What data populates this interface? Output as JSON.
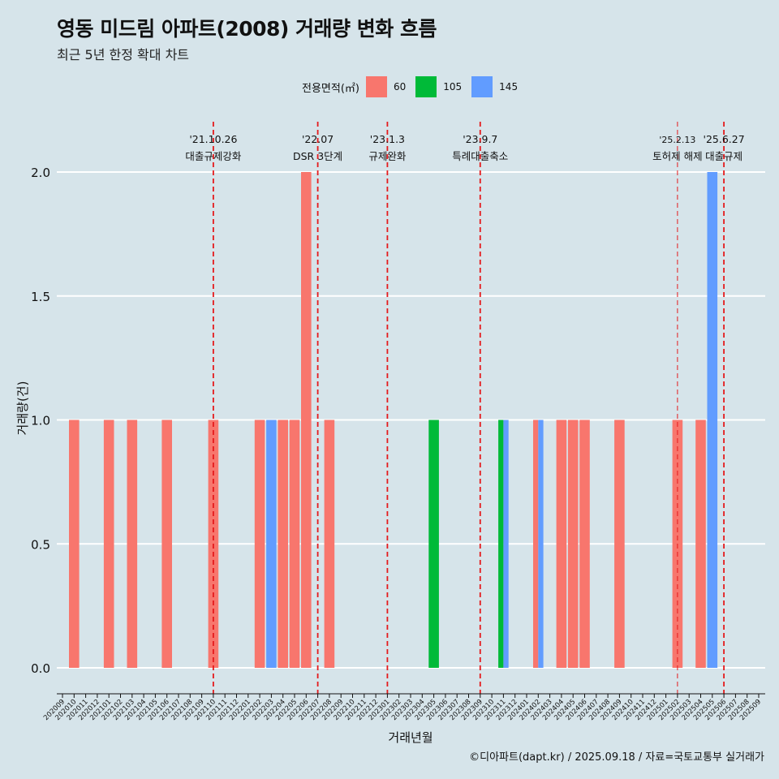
{
  "title": "영동 미드림 아파트(2008) 거래량 변화 흐름",
  "subtitle": "최근 5년 한정 확대 차트",
  "caption": "©디아파트(dapt.kr) / 2025.09.18 / 자료=국토교통부 실거래가",
  "legend": {
    "title": "전용면적(㎡)",
    "items": [
      {
        "label": "60",
        "color": "#f8766d"
      },
      {
        "label": "105",
        "color": "#00ba38"
      },
      {
        "label": "145",
        "color": "#619cff"
      }
    ]
  },
  "chart_data": {
    "type": "bar",
    "xlabel": "거래년월",
    "ylabel": "거래량(건)",
    "ylim": [
      0,
      2
    ],
    "yticks": [
      "0.0",
      "0.5",
      "1.0",
      "1.5",
      "2.0"
    ],
    "grid": "horizontal",
    "legend_position": "top",
    "categories": [
      "202009",
      "202010",
      "202011",
      "202012",
      "202101",
      "202102",
      "202103",
      "202104",
      "202105",
      "202106",
      "202107",
      "202108",
      "202109",
      "202110",
      "202111",
      "202112",
      "202201",
      "202202",
      "202203",
      "202204",
      "202205",
      "202206",
      "202207",
      "202208",
      "202209",
      "202210",
      "202211",
      "202212",
      "202301",
      "202302",
      "202303",
      "202304",
      "202305",
      "202306",
      "202307",
      "202308",
      "202309",
      "202310",
      "202311",
      "202312",
      "202401",
      "202402",
      "202403",
      "202404",
      "202405",
      "202406",
      "202407",
      "202408",
      "202409",
      "202410",
      "202411",
      "202412",
      "202501",
      "202502",
      "202503",
      "202504",
      "202505",
      "202506",
      "202507",
      "202508",
      "202509"
    ],
    "series": [
      {
        "name": "60",
        "color": "#f8766d",
        "points": [
          {
            "x": "202010",
            "y": 1
          },
          {
            "x": "202101",
            "y": 1
          },
          {
            "x": "202103",
            "y": 1
          },
          {
            "x": "202106",
            "y": 1
          },
          {
            "x": "202110",
            "y": 1
          },
          {
            "x": "202202",
            "y": 1
          },
          {
            "x": "202204",
            "y": 1
          },
          {
            "x": "202205",
            "y": 1
          },
          {
            "x": "202206",
            "y": 2
          },
          {
            "x": "202208",
            "y": 1
          },
          {
            "x": "202402",
            "y": 1
          },
          {
            "x": "202404",
            "y": 1
          },
          {
            "x": "202405",
            "y": 1
          },
          {
            "x": "202406",
            "y": 1
          },
          {
            "x": "202409",
            "y": 1
          },
          {
            "x": "202502",
            "y": 1
          },
          {
            "x": "202504",
            "y": 1
          }
        ]
      },
      {
        "name": "105",
        "color": "#00ba38",
        "points": [
          {
            "x": "202305",
            "y": 1
          },
          {
            "x": "202311",
            "y": 1
          }
        ]
      },
      {
        "name": "145",
        "color": "#619cff",
        "points": [
          {
            "x": "202203",
            "y": 1
          },
          {
            "x": "202311",
            "y": 1
          },
          {
            "x": "202402",
            "y": 1
          },
          {
            "x": "202505",
            "y": 2
          }
        ]
      }
    ],
    "events": [
      {
        "x": "202110",
        "date": "'21.10.26",
        "label": "대출규제강화"
      },
      {
        "x": "202207",
        "date": "'22.07",
        "label": "DSR 3단계"
      },
      {
        "x": "202301",
        "date": "'23.1.3",
        "label": "규제완화"
      },
      {
        "x": "202309",
        "date": "'23.9.7",
        "label": "특례대출축소"
      },
      {
        "x": "202502",
        "date": "'25.2.13",
        "label": "토허제 해제",
        "thin": true
      },
      {
        "x": "202506",
        "date": "'25.6.27",
        "label": "대출규제"
      }
    ]
  }
}
